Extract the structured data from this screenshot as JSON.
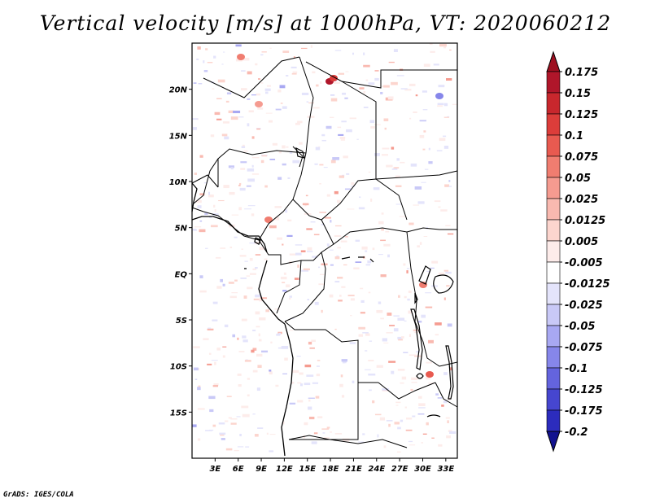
{
  "title": "Vertical velocity [m/s] at 1000hPa, VT: 2020060212",
  "credit": "GrADS: IGES/COLA",
  "map": {
    "lon_range": [
      0,
      34.5
    ],
    "lat_range": [
      -20,
      25
    ],
    "lat_ticks": [
      {
        "value": 20,
        "label": "20N"
      },
      {
        "value": 15,
        "label": "15N"
      },
      {
        "value": 10,
        "label": "10N"
      },
      {
        "value": 5,
        "label": "5N"
      },
      {
        "value": 0,
        "label": "EQ"
      },
      {
        "value": -5,
        "label": "5S"
      },
      {
        "value": -10,
        "label": "10S"
      },
      {
        "value": -15,
        "label": "15S"
      }
    ],
    "lon_ticks": [
      {
        "value": 3,
        "label": "3E"
      },
      {
        "value": 6,
        "label": "6E"
      },
      {
        "value": 9,
        "label": "9E"
      },
      {
        "value": 12,
        "label": "12E"
      },
      {
        "value": 15,
        "label": "15E"
      },
      {
        "value": 18,
        "label": "18E"
      },
      {
        "value": 21,
        "label": "21E"
      },
      {
        "value": 24,
        "label": "24E"
      },
      {
        "value": 27,
        "label": "27E"
      },
      {
        "value": 30,
        "label": "30E"
      },
      {
        "value": 33,
        "label": "33E"
      }
    ]
  },
  "colorbar": {
    "levels": [
      {
        "label": "0.175",
        "color": "#b0162a"
      },
      {
        "label": "0.15",
        "color": "#c8272d"
      },
      {
        "label": "0.125",
        "color": "#dc3d3a"
      },
      {
        "label": "0.1",
        "color": "#e85a50"
      },
      {
        "label": "0.075",
        "color": "#f07d70"
      },
      {
        "label": "0.05",
        "color": "#f59b90"
      },
      {
        "label": "0.025",
        "color": "#f9b9b0"
      },
      {
        "label": "0.0125",
        "color": "#fcd5ce"
      },
      {
        "label": "0.005",
        "color": "#fdecea"
      },
      {
        "label": "-0.005",
        "color": "#ffffff"
      },
      {
        "label": "-0.0125",
        "color": "#e4e4fb"
      },
      {
        "label": "-0.025",
        "color": "#c9c9f7"
      },
      {
        "label": "-0.05",
        "color": "#a8a8f2"
      },
      {
        "label": "-0.075",
        "color": "#8686ea"
      },
      {
        "label": "-0.1",
        "color": "#6464de"
      },
      {
        "label": "-0.125",
        "color": "#4646cf"
      },
      {
        "label": "-0.175",
        "color": "#2c2cbd"
      },
      {
        "label": "-0.2",
        "color": "#1818a8"
      }
    ],
    "over_color": "#9e1020",
    "under_color": "#12128f"
  }
}
